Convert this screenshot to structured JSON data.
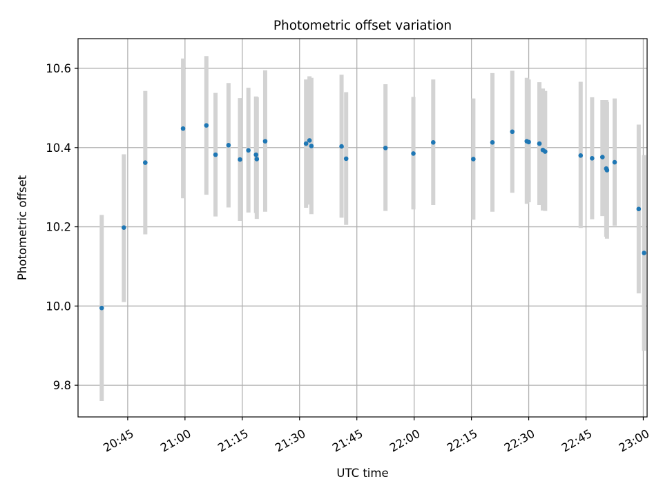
{
  "chart_data": {
    "type": "scatter",
    "title": "Photometric offset variation",
    "xlabel": "UTC time",
    "ylabel": "Photometric offset",
    "x_unit": "minutes after 20:00 UTC",
    "xlim": [
      32,
      181
    ],
    "ylim": [
      9.72,
      10.675
    ],
    "x_ticks": [
      {
        "value": 45,
        "label": "20:45"
      },
      {
        "value": 60,
        "label": "21:00"
      },
      {
        "value": 75,
        "label": "21:15"
      },
      {
        "value": 90,
        "label": "21:30"
      },
      {
        "value": 105,
        "label": "21:45"
      },
      {
        "value": 120,
        "label": "22:00"
      },
      {
        "value": 135,
        "label": "22:15"
      },
      {
        "value": 150,
        "label": "22:30"
      },
      {
        "value": 165,
        "label": "22:45"
      },
      {
        "value": 180,
        "label": "23:00"
      }
    ],
    "y_ticks": [
      {
        "value": 9.8,
        "label": "9.8"
      },
      {
        "value": 10.0,
        "label": "10.0"
      },
      {
        "value": 10.2,
        "label": "10.2"
      },
      {
        "value": 10.4,
        "label": "10.4"
      },
      {
        "value": 10.6,
        "label": "10.6"
      }
    ],
    "grid": true,
    "colors": {
      "marker": "#1f77b4",
      "errorbar": "#d3d3d3",
      "grid": "#b0b0b0"
    },
    "points": [
      {
        "x": 38.2,
        "y": 9.995,
        "lo": 9.76,
        "hi": 10.23
      },
      {
        "x": 44.0,
        "y": 10.198,
        "lo": 10.01,
        "hi": 10.383
      },
      {
        "x": 49.6,
        "y": 10.362,
        "lo": 10.181,
        "hi": 10.543
      },
      {
        "x": 59.5,
        "y": 10.448,
        "lo": 10.272,
        "hi": 10.625
      },
      {
        "x": 65.6,
        "y": 10.456,
        "lo": 10.281,
        "hi": 10.631
      },
      {
        "x": 68.0,
        "y": 10.382,
        "lo": 10.226,
        "hi": 10.538
      },
      {
        "x": 71.4,
        "y": 10.406,
        "lo": 10.249,
        "hi": 10.563
      },
      {
        "x": 74.4,
        "y": 10.37,
        "lo": 10.215,
        "hi": 10.525
      },
      {
        "x": 76.6,
        "y": 10.393,
        "lo": 10.236,
        "hi": 10.551
      },
      {
        "x": 78.6,
        "y": 10.382,
        "lo": 10.235,
        "hi": 10.529
      },
      {
        "x": 78.8,
        "y": 10.371,
        "lo": 10.22,
        "hi": 10.527
      },
      {
        "x": 81.0,
        "y": 10.416,
        "lo": 10.238,
        "hi": 10.595
      },
      {
        "x": 91.7,
        "y": 10.41,
        "lo": 10.248,
        "hi": 10.572
      },
      {
        "x": 92.6,
        "y": 10.418,
        "lo": 10.256,
        "hi": 10.58
      },
      {
        "x": 93.1,
        "y": 10.404,
        "lo": 10.232,
        "hi": 10.576
      },
      {
        "x": 101.0,
        "y": 10.403,
        "lo": 10.223,
        "hi": 10.584
      },
      {
        "x": 102.2,
        "y": 10.372,
        "lo": 10.205,
        "hi": 10.54
      },
      {
        "x": 112.5,
        "y": 10.399,
        "lo": 10.24,
        "hi": 10.56
      },
      {
        "x": 119.8,
        "y": 10.385,
        "lo": 10.244,
        "hi": 10.528
      },
      {
        "x": 125.0,
        "y": 10.413,
        "lo": 10.255,
        "hi": 10.572
      },
      {
        "x": 135.5,
        "y": 10.371,
        "lo": 10.218,
        "hi": 10.524
      },
      {
        "x": 140.5,
        "y": 10.413,
        "lo": 10.238,
        "hi": 10.588
      },
      {
        "x": 145.7,
        "y": 10.44,
        "lo": 10.286,
        "hi": 10.594
      },
      {
        "x": 149.5,
        "y": 10.416,
        "lo": 10.258,
        "hi": 10.576
      },
      {
        "x": 150.0,
        "y": 10.414,
        "lo": 10.262,
        "hi": 10.572
      },
      {
        "x": 152.8,
        "y": 10.41,
        "lo": 10.255,
        "hi": 10.565
      },
      {
        "x": 153.7,
        "y": 10.394,
        "lo": 10.241,
        "hi": 10.549
      },
      {
        "x": 154.3,
        "y": 10.39,
        "lo": 10.24,
        "hi": 10.543
      },
      {
        "x": 163.6,
        "y": 10.38,
        "lo": 10.197,
        "hi": 10.566
      },
      {
        "x": 166.6,
        "y": 10.373,
        "lo": 10.219,
        "hi": 10.527
      },
      {
        "x": 169.3,
        "y": 10.376,
        "lo": 10.227,
        "hi": 10.52
      },
      {
        "x": 170.3,
        "y": 10.347,
        "lo": 10.175,
        "hi": 10.52
      },
      {
        "x": 170.5,
        "y": 10.343,
        "lo": 10.17,
        "hi": 10.515
      },
      {
        "x": 172.5,
        "y": 10.363,
        "lo": 10.203,
        "hi": 10.524
      },
      {
        "x": 178.8,
        "y": 10.245,
        "lo": 10.032,
        "hi": 10.458
      },
      {
        "x": 180.2,
        "y": 10.134,
        "lo": 9.887,
        "hi": 10.381
      }
    ]
  }
}
